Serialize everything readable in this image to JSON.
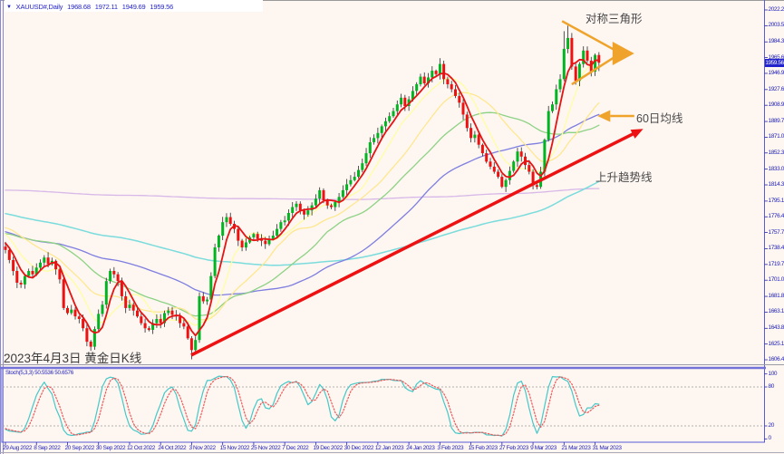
{
  "title_bar": {
    "dropdown_icon": "▼",
    "symbol": "XAUUSD#,Daily",
    "open": "1968.68",
    "high": "1972.11",
    "low": "1949.69",
    "close": "1959.56"
  },
  "price_axis": {
    "current_price_label": "1959.56"
  },
  "main_annotations": {
    "triangle_label": "对称三角形",
    "ma60_label": "60日均线",
    "trendline_label": "上升趋势线",
    "date_caption": "2023年4月3日 黄金日K线"
  },
  "stoch_panel": {
    "label": "Stoch(5,3,3) 50.5536 50.6576",
    "k_value": 50.5536,
    "d_value": 50.6576
  },
  "chart_data": {
    "type": "candlestick",
    "symbol": "XAUUSD#",
    "timeframe": "Daily",
    "title": "XAUUSD#,Daily 1968.68 1972.11 1949.69 1959.56",
    "ylim": [
      1606.45,
      2022.25
    ],
    "price_ticks": [
      2022.25,
      2003.55,
      1984.3,
      1965.6,
      1946.9,
      1927.65,
      1908.95,
      1889.7,
      1871.0,
      1852.3,
      1833.05,
      1814.35,
      1795.1,
      1776.4,
      1757.7,
      1738.45,
      1719.75,
      1701.05,
      1681.8,
      1663.1,
      1643.85,
      1625.15,
      1606.45
    ],
    "current_price": 1959.56,
    "x_tick_dates": [
      "29 Aug 2022",
      "8 Sep 2022",
      "20 Sep 2022",
      "30 Sep 2022",
      "12 Oct 2022",
      "24 Oct 2022",
      "3 Nov 2022",
      "15 Nov 2022",
      "25 Nov 2022",
      "7 Dec 2022",
      "19 Dec 2022",
      "30 Dec 2022",
      "12 Jan 2023",
      "24 Jan 2023",
      "3 Feb 2023",
      "15 Feb 2023",
      "27 Feb 2023",
      "9 Mar 2023",
      "21 Mar 2023",
      "31 Mar 2023"
    ],
    "x_tick_every_n_candles": 8,
    "closes": [
      1737,
      1725,
      1712,
      1698,
      1696,
      1706,
      1712,
      1708,
      1716,
      1722,
      1728,
      1720,
      1724,
      1714,
      1702,
      1668,
      1662,
      1666,
      1658,
      1655,
      1644,
      1628,
      1622,
      1643,
      1661,
      1672,
      1700,
      1712,
      1708,
      1700,
      1682,
      1668,
      1672,
      1665,
      1658,
      1650,
      1644,
      1642,
      1650,
      1655,
      1650,
      1662,
      1665,
      1660,
      1658,
      1650,
      1646,
      1632,
      1618,
      1630,
      1682,
      1676,
      1678,
      1706,
      1740,
      1754,
      1770,
      1776,
      1768,
      1762,
      1748,
      1740,
      1746,
      1752,
      1756,
      1750,
      1748,
      1744,
      1750,
      1754,
      1762,
      1770,
      1772,
      1781,
      1788,
      1792,
      1784,
      1779,
      1784,
      1790,
      1798,
      1808,
      1796,
      1790,
      1788,
      1794,
      1800,
      1808,
      1815,
      1820,
      1824,
      1832,
      1840,
      1852,
      1865,
      1870,
      1876,
      1884,
      1890,
      1896,
      1902,
      1910,
      1918,
      1908,
      1916,
      1926,
      1934,
      1943,
      1935,
      1942,
      1950,
      1946,
      1958,
      1940,
      1934,
      1928,
      1920,
      1912,
      1898,
      1882,
      1870,
      1874,
      1862,
      1852,
      1842,
      1836,
      1830,
      1824,
      1812,
      1820,
      1831,
      1842,
      1854,
      1848,
      1838,
      1830,
      1814,
      1812,
      1830,
      1868,
      1902,
      1910,
      1928,
      1940,
      1976,
      1989,
      1955,
      1938,
      1958,
      1974,
      1962,
      1949,
      1968.68,
      1959.56
    ],
    "last_candle": {
      "open": 1968.68,
      "high": 1972.11,
      "low": 1949.69,
      "close": 1959.56
    },
    "long_wick_lows": {
      "22": 1617.0,
      "48": 1607.0,
      "136": 1809.0
    },
    "long_wick_highs": {
      "112": 1965.0,
      "144": 1997.0,
      "145": 2003.5
    },
    "prehistory": {
      "start": 1918,
      "end": 1737,
      "n": 250
    },
    "moving_averages": [
      {
        "name": "MA120",
        "window": 120,
        "color": "#7adcdc",
        "width": 1.5
      },
      {
        "name": "MA60",
        "window": 60,
        "color": "#7e7ee0",
        "width": 1.3
      },
      {
        "name": "MA34",
        "window": 34,
        "color": "#8ed284",
        "width": 1.3
      },
      {
        "name": "MA21",
        "window": 21,
        "color": "#ffe788",
        "width": 1.2
      },
      {
        "name": "MA10",
        "window": 10,
        "color": "#ffff9c",
        "width": 1.2
      },
      {
        "name": "MA5",
        "window": 5,
        "color": "#e41414",
        "width": 1.8,
        "on_top": true
      }
    ],
    "ma250_path": [
      [
        0,
        1808
      ],
      [
        30,
        1802
      ],
      [
        60,
        1798
      ],
      [
        90,
        1797
      ],
      [
        110,
        1800
      ],
      [
        130,
        1804
      ],
      [
        153,
        1810
      ]
    ],
    "ma250_color": "#d8b8e8",
    "stochastic": {
      "k_period": 5,
      "d_period": 3,
      "slowing": 3,
      "k_last": 50.5536,
      "d_last": 50.6576,
      "range": [
        0,
        100
      ],
      "axis_ticks": [
        100,
        80,
        20,
        0
      ],
      "grid_levels": [
        80,
        20
      ]
    },
    "objects": {
      "trend_line": {
        "from_index": 47.9,
        "from_price": 1612,
        "to_index": 163,
        "to_price": 1877.7,
        "color": "#ee1111",
        "width": 3.5
      },
      "triangle": {
        "upper_from": [
          143.5,
          2009
        ],
        "upper_to": [
          157,
          1974.8
        ],
        "lower_from": [
          146,
          1933.9
        ],
        "lower_to": [
          157,
          1966.2
        ],
        "apex_tip": [
          162.1,
          1970.5
        ],
        "color": "#efa32a",
        "width": 2.5
      },
      "ma60_arrow": {
        "from_index": 162.1,
        "from_price": 1896.2,
        "to_index": 154.5,
        "to_price": 1896.2,
        "color": "#efa32a",
        "width": 2.5
      }
    },
    "colors": {
      "background": "#fdf6f1",
      "bull": "#00b422",
      "bear": "#ee1111",
      "wick": "#2a2a2a",
      "frame": "#5b5bd6",
      "panel_top": "#7272d8",
      "grid_dash": "#9a9a9a",
      "axis_text": "#2323bb",
      "stoch_k": "#46c8c8",
      "stoch_d": "#f05858",
      "separator": "#9a9aa8",
      "badge": "#2222cc"
    }
  }
}
